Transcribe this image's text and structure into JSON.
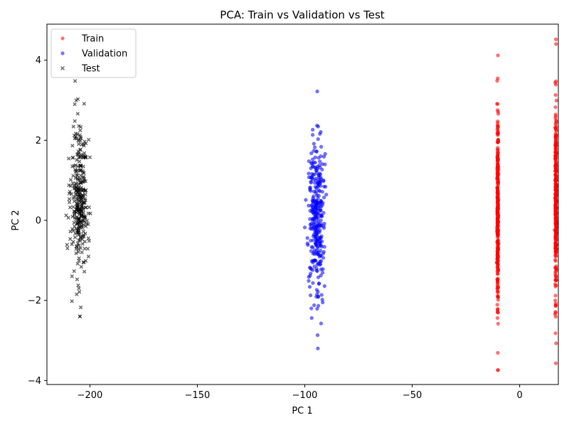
{
  "chart_data": {
    "type": "scatter",
    "title": "PCA: Train vs Validation vs Test",
    "xlabel": "PC 1",
    "ylabel": "PC 2",
    "xlim": [
      -220,
      18
    ],
    "ylim": [
      -4.1,
      4.9
    ],
    "xticks": [
      -200,
      -150,
      -100,
      -50,
      0
    ],
    "xtick_labels": [
      "−200",
      "−150",
      "−100",
      "−50",
      "0"
    ],
    "yticks": [
      -4,
      -2,
      0,
      2,
      4
    ],
    "ytick_labels": [
      "−4",
      "−2",
      "0",
      "2",
      "4"
    ],
    "grid": false,
    "legend_position": "top-left",
    "series": [
      {
        "name": "Train",
        "color": "#ff0000",
        "marker": "circle",
        "alpha": 0.55,
        "clusters": [
          {
            "x_center": -10.2,
            "x_spread": 0.4,
            "y_min": -3.74,
            "y_max": 4.12
          },
          {
            "x_center": 16.8,
            "x_spread": 0.4,
            "y_min": -3.57,
            "y_max": 4.52
          }
        ]
      },
      {
        "name": "Validation",
        "color": "#0000ff",
        "marker": "circle",
        "alpha": 0.55,
        "clusters": [
          {
            "x_center": -94.5,
            "x_spread": 5.5,
            "y_min": -3.2,
            "y_max": 3.22
          }
        ]
      },
      {
        "name": "Test",
        "color": "#000000",
        "marker": "x",
        "alpha": 0.6,
        "clusters": [
          {
            "x_center": -205,
            "x_spread": 5.5,
            "y_min": -2.4,
            "y_max": 3.48
          }
        ]
      }
    ]
  }
}
